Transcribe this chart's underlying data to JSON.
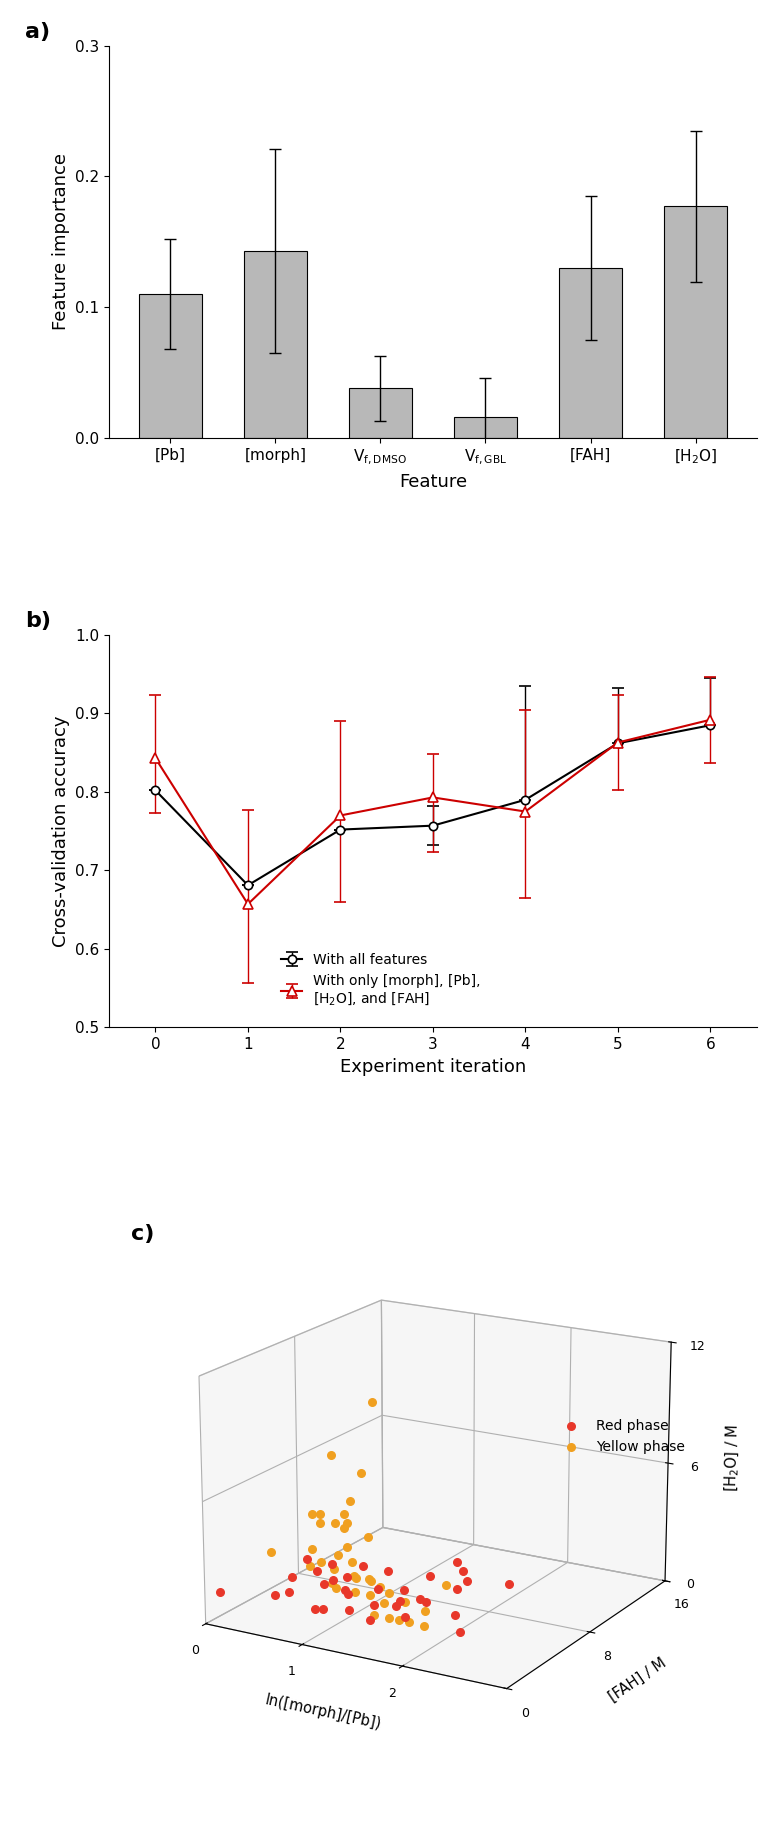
{
  "panel_a": {
    "categories": [
      "[Pb]",
      "[morph]",
      "V$_{f,\\ DMSO}$",
      "V$_{f,\\ GBL}$",
      "[FAH]",
      "[H$_2$O]"
    ],
    "values": [
      0.11,
      0.143,
      0.038,
      0.016,
      0.13,
      0.177
    ],
    "errors": [
      0.042,
      0.078,
      0.025,
      0.03,
      0.055,
      0.058
    ],
    "bar_color": "#b8b8b8",
    "ylabel": "Feature importance",
    "xlabel": "Feature",
    "ylim": [
      0.0,
      0.3
    ],
    "yticks": [
      0.0,
      0.1,
      0.2,
      0.3
    ]
  },
  "panel_b": {
    "x": [
      0,
      1,
      2,
      3,
      4,
      5,
      6
    ],
    "y_all": [
      0.802,
      0.681,
      0.752,
      0.757,
      0.79,
      0.862,
      0.885
    ],
    "y_err_all_up": [
      0.0,
      0.0,
      0.0,
      0.025,
      0.145,
      0.07,
      0.06
    ],
    "y_err_all_down": [
      0.0,
      0.0,
      0.0,
      0.025,
      0.0,
      0.0,
      0.0
    ],
    "y_sub": [
      0.843,
      0.657,
      0.77,
      0.793,
      0.775,
      0.863,
      0.892
    ],
    "y_err_sub_up": [
      0.08,
      0.12,
      0.12,
      0.055,
      0.13,
      0.06,
      0.055
    ],
    "y_err_sub_down": [
      0.07,
      0.1,
      0.11,
      0.07,
      0.11,
      0.06,
      0.055
    ],
    "color_all": "#000000",
    "color_sub": "#cc0000",
    "ylabel": "Cross-validation accuracy",
    "xlabel": "Experiment iteration",
    "ylim": [
      0.5,
      1.0
    ],
    "yticks": [
      0.5,
      0.6,
      0.7,
      0.8,
      0.9,
      1.0
    ],
    "label_all": "With all features",
    "label_sub": "With only [morph], [Pb],\n[H$_2$O], and [FAH]"
  },
  "panel_c": {
    "red_x": [
      0.55,
      0.75,
      0.85,
      0.9,
      1.0,
      1.05,
      1.1,
      1.1,
      1.15,
      1.2,
      1.25,
      1.3,
      1.35,
      1.4,
      1.45,
      1.5,
      1.55,
      1.6,
      1.65,
      1.7,
      1.75,
      1.8,
      1.85,
      1.9,
      1.95,
      2.0,
      2.05,
      2.1,
      2.15,
      2.2,
      2.3,
      2.4,
      2.5,
      0.1
    ],
    "red_fah": [
      1.5,
      1.0,
      0.5,
      2.0,
      0.5,
      1.5,
      0.5,
      1.0,
      2.5,
      1.0,
      0.5,
      1.5,
      1.0,
      0.5,
      2.0,
      1.0,
      1.5,
      3.0,
      1.0,
      2.5,
      1.0,
      2.0,
      1.5,
      3.0,
      2.0,
      2.5,
      5.0,
      4.0,
      3.5,
      4.0,
      7.0,
      1.0,
      0.5,
      0.5
    ],
    "red_h2o": [
      1.5,
      2.0,
      3.0,
      1.0,
      4.0,
      2.5,
      3.5,
      1.5,
      2.0,
      3.0,
      4.0,
      1.5,
      2.5,
      3.5,
      1.0,
      4.0,
      2.0,
      1.5,
      3.0,
      2.0,
      4.0,
      1.5,
      3.0,
      2.0,
      2.5,
      3.5,
      3.0,
      2.5,
      4.0,
      3.0,
      2.0,
      2.5,
      2.0,
      1.5
    ],
    "yellow_x": [
      0.2,
      0.3,
      0.4,
      0.45,
      0.5,
      0.55,
      0.6,
      0.65,
      0.7,
      0.72,
      0.75,
      0.8,
      0.85,
      0.9,
      0.92,
      0.95,
      1.0,
      1.05,
      1.1,
      1.15,
      1.2,
      1.25,
      1.3,
      1.35,
      1.4,
      1.45,
      1.5,
      1.55,
      1.6,
      1.65,
      1.7,
      1.75,
      1.8,
      1.9,
      2.0,
      2.05,
      2.1,
      0.25,
      0.35
    ],
    "yellow_fah": [
      4.0,
      7.5,
      6.0,
      10.0,
      8.0,
      4.5,
      5.0,
      7.0,
      5.5,
      4.0,
      3.0,
      6.0,
      5.0,
      4.0,
      3.5,
      3.0,
      4.0,
      2.5,
      3.5,
      4.5,
      3.0,
      2.5,
      2.0,
      3.0,
      2.5,
      2.0,
      2.5,
      1.5,
      2.0,
      2.0,
      1.5,
      2.5,
      1.5,
      1.5,
      2.0,
      1.5,
      3.0,
      9.0,
      12.0
    ],
    "yellow_h2o": [
      2.5,
      3.0,
      4.0,
      5.0,
      3.5,
      2.0,
      4.5,
      3.5,
      4.0,
      2.5,
      3.5,
      5.0,
      4.0,
      3.0,
      2.5,
      2.0,
      3.5,
      2.0,
      3.0,
      4.0,
      2.5,
      2.0,
      3.0,
      2.5,
      2.0,
      3.0,
      2.5,
      1.5,
      2.0,
      2.5,
      1.5,
      2.0,
      1.5,
      1.5,
      2.0,
      1.5,
      3.0,
      6.0,
      8.0
    ],
    "xlabel": "ln([morph]/[Pb])",
    "ylabel": "[FAH] / M",
    "zlabel": "[H$_2$O] / M",
    "xlim": [
      0,
      3
    ],
    "fah_lim": [
      0,
      16
    ],
    "h2o_lim": [
      0,
      12
    ],
    "xticks": [
      0,
      1,
      2
    ],
    "fah_ticks": [
      0,
      8,
      16
    ],
    "h2o_ticks": [
      0,
      6,
      12
    ],
    "red_color": "#e8372a",
    "yellow_color": "#f0a020",
    "label_red": "Red phase",
    "label_yellow": "Yellow phase"
  }
}
